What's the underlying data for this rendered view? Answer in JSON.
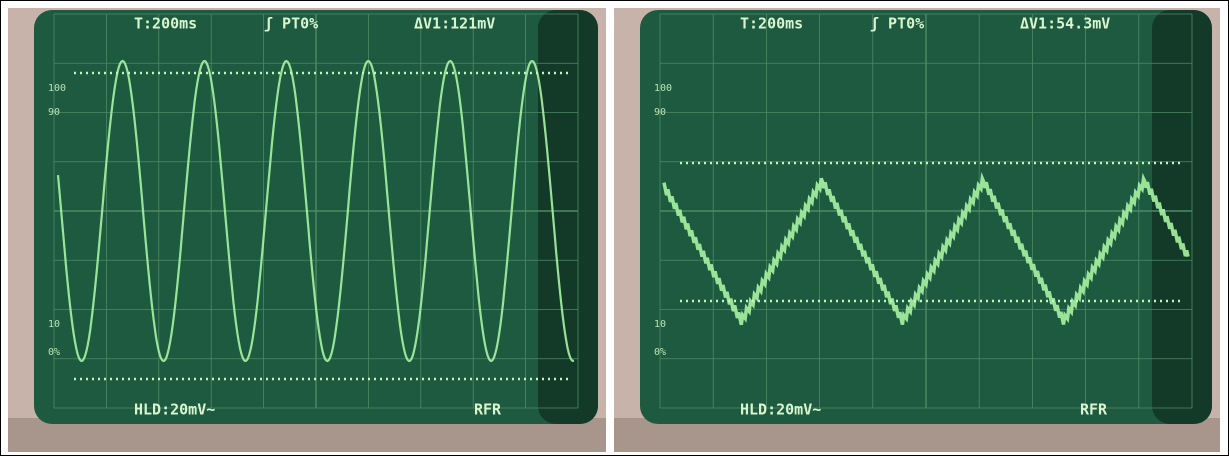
{
  "screens": [
    {
      "header": {
        "timebase": "T:200ms",
        "trigger": "ʃ PT0%",
        "delta": "ΔV1:121mV"
      },
      "scale_labels": [
        "100",
        "90",
        "10",
        "0%"
      ],
      "footer": {
        "hold": "HLD:20mV~",
        "mode": "RFR"
      }
    },
    {
      "header": {
        "timebase": "T:200ms",
        "trigger": "ʃ PT0%",
        "delta": "ΔV1:54.3mV"
      },
      "scale_labels": [
        "100",
        "90",
        "10",
        "0%"
      ],
      "footer": {
        "hold": "HLD:20mV~",
        "mode": "RFR"
      }
    }
  ]
}
